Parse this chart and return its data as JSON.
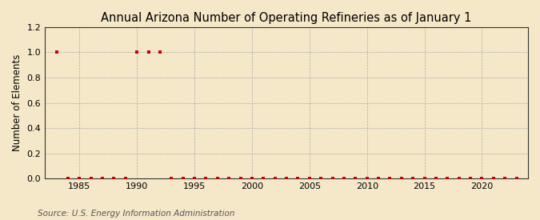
{
  "title": "Annual Arizona Number of Operating Refineries as of January 1",
  "ylabel": "Number of Elements",
  "source_text": "Source: U.S. Energy Information Administration",
  "background_color": "#f5e8c8",
  "plot_background_color": "#f5e8c8",
  "grid_color": "#aaaaaa",
  "marker_color": "#cc0000",
  "marker_size": 3.5,
  "years": [
    1983,
    1984,
    1985,
    1986,
    1987,
    1988,
    1989,
    1990,
    1991,
    1992,
    1993,
    1994,
    1995,
    1996,
    1997,
    1998,
    1999,
    2000,
    2001,
    2002,
    2003,
    2004,
    2005,
    2006,
    2007,
    2008,
    2009,
    2010,
    2011,
    2012,
    2013,
    2014,
    2015,
    2016,
    2017,
    2018,
    2019,
    2020,
    2021,
    2022,
    2023
  ],
  "values": [
    1,
    0,
    0,
    0,
    0,
    0,
    0,
    1,
    1,
    1,
    0,
    0,
    0,
    0,
    0,
    0,
    0,
    0,
    0,
    0,
    0,
    0,
    0,
    0,
    0,
    0,
    0,
    0,
    0,
    0,
    0,
    0,
    0,
    0,
    0,
    0,
    0,
    0,
    0,
    0,
    0
  ],
  "xlim": [
    1982,
    2024
  ],
  "ylim": [
    0,
    1.2
  ],
  "yticks": [
    0.0,
    0.2,
    0.4,
    0.6,
    0.8,
    1.0,
    1.2
  ],
  "xticks": [
    1985,
    1990,
    1995,
    2000,
    2005,
    2010,
    2015,
    2020
  ],
  "title_fontsize": 10.5,
  "axis_fontsize": 8.5,
  "tick_fontsize": 8,
  "source_fontsize": 7.5
}
